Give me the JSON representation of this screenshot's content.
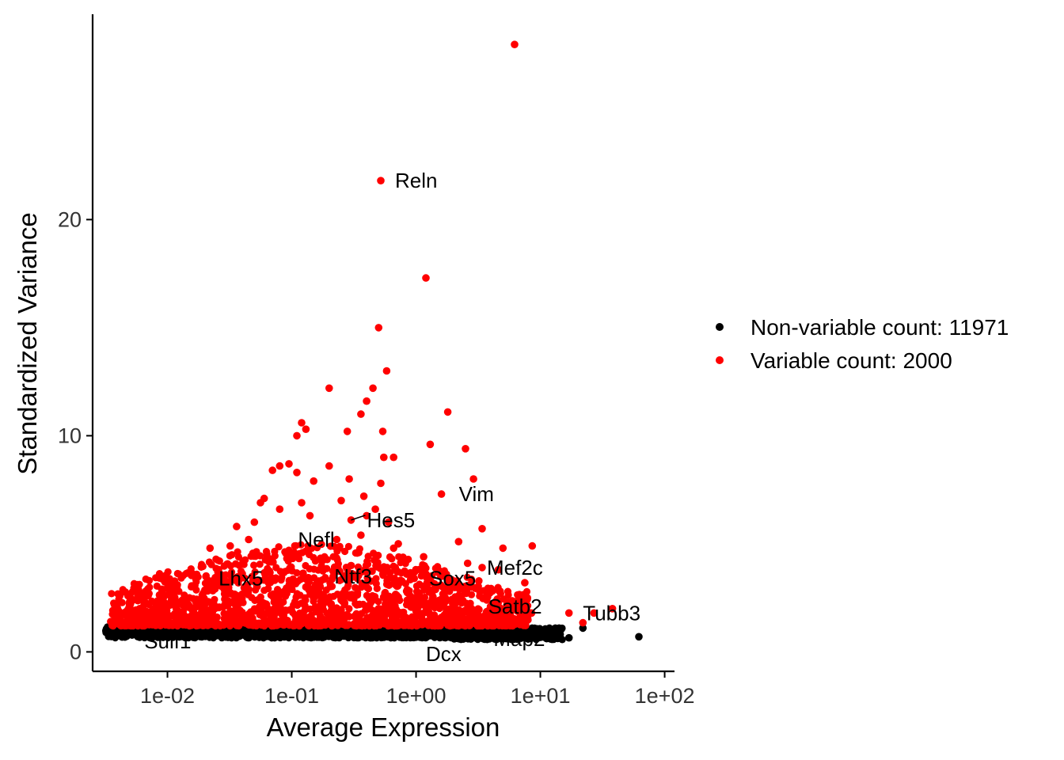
{
  "chart_data": {
    "type": "scatter",
    "xlabel": "Average Expression",
    "ylabel": "Standardized Variance",
    "x_scale": "log10",
    "xlim": [
      0.0025,
      120
    ],
    "ylim": [
      -0.9,
      29.5
    ],
    "x_ticks": [
      {
        "value": 0.01,
        "label": "1e-02"
      },
      {
        "value": 0.1,
        "label": "1e-01"
      },
      {
        "value": 1,
        "label": "1e+00"
      },
      {
        "value": 10,
        "label": "1e+01"
      },
      {
        "value": 100,
        "label": "1e+02"
      }
    ],
    "y_ticks": [
      {
        "value": 0,
        "label": "0"
      },
      {
        "value": 10,
        "label": "10"
      },
      {
        "value": 20,
        "label": "20"
      }
    ],
    "grid": false,
    "legend_position": "right",
    "series": [
      {
        "name": "Non-variable count: 11971",
        "color": "#000000",
        "count": 11971,
        "points": [
          [
            0.0032,
            0.98
          ],
          [
            0.004,
            0.96
          ],
          [
            0.005,
            0.95
          ],
          [
            0.006,
            0.94
          ],
          [
            0.008,
            0.92
          ],
          [
            0.01,
            0.9
          ],
          [
            0.013,
            0.92
          ],
          [
            0.017,
            0.95
          ],
          [
            0.022,
            0.9
          ],
          [
            0.03,
            0.92
          ],
          [
            0.04,
            0.93
          ],
          [
            0.055,
            0.95
          ],
          [
            0.075,
            0.94
          ],
          [
            0.1,
            0.96
          ],
          [
            0.14,
            0.95
          ],
          [
            0.2,
            0.94
          ],
          [
            0.28,
            0.92
          ],
          [
            0.4,
            0.9
          ],
          [
            0.55,
            0.88
          ],
          [
            0.8,
            0.9
          ],
          [
            1.1,
            0.92
          ],
          [
            1.5,
            0.88
          ],
          [
            2.0,
            0.85
          ],
          [
            3.0,
            0.82
          ],
          [
            4.0,
            0.8
          ],
          [
            5.5,
            0.82
          ],
          [
            7.0,
            0.85
          ],
          [
            9.0,
            0.88
          ],
          [
            11.0,
            0.9
          ],
          [
            13.0,
            1.0
          ],
          [
            14.0,
            0.85
          ],
          [
            17.0,
            0.65
          ],
          [
            22.0,
            1.1
          ],
          [
            62.0,
            0.7
          ]
        ]
      },
      {
        "name": "Variable count: 2000",
        "color": "#ff0000",
        "count": 2000,
        "points": [
          [
            6.2,
            28.1
          ],
          [
            0.52,
            21.8
          ],
          [
            1.2,
            17.3
          ],
          [
            0.5,
            15.0
          ],
          [
            0.58,
            13.0
          ],
          [
            0.45,
            12.2
          ],
          [
            0.2,
            12.2
          ],
          [
            0.4,
            11.6
          ],
          [
            1.8,
            11.1
          ],
          [
            0.36,
            11.0
          ],
          [
            0.12,
            10.6
          ],
          [
            0.13,
            10.3
          ],
          [
            0.28,
            10.2
          ],
          [
            0.11,
            10.0
          ],
          [
            0.54,
            10.2
          ],
          [
            1.3,
            9.6
          ],
          [
            2.5,
            9.4
          ],
          [
            0.55,
            9.0
          ],
          [
            0.66,
            9.0
          ],
          [
            0.095,
            8.7
          ],
          [
            0.2,
            8.6
          ],
          [
            0.08,
            8.6
          ],
          [
            0.07,
            8.4
          ],
          [
            0.11,
            8.3
          ],
          [
            0.29,
            8.0
          ],
          [
            2.9,
            8.0
          ],
          [
            0.15,
            7.9
          ],
          [
            0.52,
            7.8
          ],
          [
            1.6,
            7.3
          ],
          [
            0.06,
            7.1
          ],
          [
            0.38,
            7.2
          ],
          [
            0.25,
            7.0
          ],
          [
            0.12,
            6.9
          ],
          [
            0.08,
            6.6
          ],
          [
            0.056,
            6.9
          ],
          [
            0.47,
            6.6
          ],
          [
            0.6,
            6.0
          ],
          [
            0.4,
            6.3
          ],
          [
            0.3,
            6.1
          ],
          [
            0.036,
            5.8
          ],
          [
            0.05,
            6.0
          ],
          [
            0.14,
            6.3
          ],
          [
            3.4,
            5.7
          ],
          [
            2.2,
            5.1
          ],
          [
            5.0,
            4.8
          ],
          [
            8.6,
            4.9
          ],
          [
            0.045,
            5.2
          ],
          [
            0.032,
            4.9
          ],
          [
            0.23,
            5.2
          ],
          [
            0.36,
            5.4
          ],
          [
            0.66,
            4.8
          ],
          [
            0.72,
            5.0
          ],
          [
            1.15,
            4.4
          ],
          [
            2.6,
            4.1
          ],
          [
            3.4,
            3.9
          ],
          [
            4.6,
            3.8
          ],
          [
            7.5,
            3.2
          ],
          [
            1.2,
            3.6
          ],
          [
            1.6,
            3.5
          ],
          [
            3.7,
            2.4
          ],
          [
            4.2,
            2.0
          ],
          [
            6.2,
            2.0
          ],
          [
            8.5,
            1.8
          ],
          [
            17.0,
            1.8
          ],
          [
            22.0,
            1.35
          ],
          [
            27.0,
            1.8
          ],
          [
            38.0,
            2.0
          ],
          [
            0.022,
            4.8
          ],
          [
            0.016,
            3.6
          ],
          [
            0.012,
            3.1
          ],
          [
            0.009,
            2.9
          ],
          [
            0.007,
            2.6
          ],
          [
            0.005,
            2.0
          ],
          [
            0.004,
            1.6
          ],
          [
            0.0035,
            1.4
          ],
          [
            0.015,
            2.5
          ],
          [
            0.02,
            2.2
          ],
          [
            0.03,
            2.7
          ],
          [
            0.045,
            2.9
          ],
          [
            0.065,
            3.2
          ],
          [
            0.09,
            2.8
          ],
          [
            0.13,
            3.0
          ],
          [
            0.18,
            2.6
          ],
          [
            0.25,
            2.4
          ],
          [
            0.35,
            2.2
          ],
          [
            0.5,
            2.0
          ],
          [
            0.7,
            1.8
          ],
          [
            1.0,
            1.9
          ],
          [
            1.4,
            1.7
          ],
          [
            2.0,
            1.6
          ],
          [
            2.8,
            1.5
          ],
          [
            3.8,
            1.45
          ],
          [
            0.01,
            1.5
          ],
          [
            0.015,
            1.55
          ],
          [
            0.025,
            1.6
          ],
          [
            0.04,
            1.65
          ],
          [
            0.06,
            1.7
          ],
          [
            0.085,
            1.75
          ],
          [
            0.12,
            1.7
          ],
          [
            0.17,
            1.65
          ],
          [
            0.24,
            1.6
          ],
          [
            0.34,
            1.55
          ],
          [
            0.48,
            1.5
          ],
          [
            0.68,
            1.45
          ],
          [
            0.95,
            1.4
          ],
          [
            1.35,
            1.35
          ],
          [
            1.9,
            1.3
          ]
        ]
      }
    ],
    "annotations": [
      {
        "text": "Reln",
        "x": 0.52,
        "y": 21.8
      },
      {
        "text": "Vim",
        "x": 1.6,
        "y": 7.3
      },
      {
        "text": "Hes5",
        "x": 0.3,
        "y": 6.1
      },
      {
        "text": "Nefl",
        "x": 0.13,
        "y": 5.2
      },
      {
        "text": "Mef2c",
        "x": 3.4,
        "y": 3.9
      },
      {
        "text": "Ntf3",
        "x": 0.22,
        "y": 3.5
      },
      {
        "text": "Lhx5",
        "x": 0.04,
        "y": 3.4
      },
      {
        "text": "Sox5",
        "x": 1.1,
        "y": 3.4
      },
      {
        "text": "Satb2",
        "x": 3.8,
        "y": 2.1
      },
      {
        "text": "Tubb3",
        "x": 22.0,
        "y": 1.8
      },
      {
        "text": "Sulf1",
        "x": 0.0065,
        "y": 0.5
      },
      {
        "text": "Dcx",
        "x": 1.2,
        "y": -0.1
      },
      {
        "text": "Map2",
        "x": 4.2,
        "y": 0.6
      }
    ]
  }
}
